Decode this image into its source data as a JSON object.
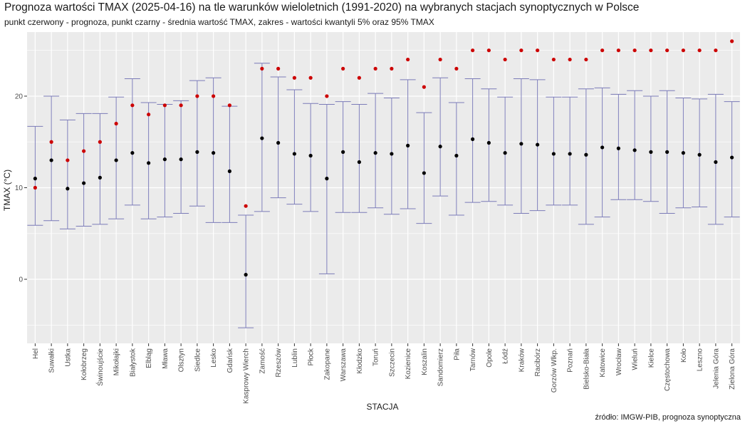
{
  "chart_data": {
    "type": "errorbar-dot",
    "title": "Prognoza wartości TMAX (2025-04-16) na tle warunków wieloletnich (1991-2020) na wybranych stacjach synoptycznych w Polsce",
    "subtitle": "punkt czerwony - prognoza, punkt czarny - średnia wartość TMAX, zakres - wartości kwantyli 5% oraz 95% TMAX",
    "xlabel": "STACJA",
    "ylabel": "TMAX (°C)",
    "source": "źródło: IMGW-PIB, prognoza synoptyczna",
    "ylim": [
      -7,
      27
    ],
    "yticks": [
      0,
      10,
      20
    ],
    "colors": {
      "forecast": "#cc0000",
      "mean": "#000000",
      "range": "#7b7bb8",
      "panel": "#ebebeb",
      "grid": "#ffffff"
    },
    "stations": [
      {
        "name": "Hel",
        "q5": 5.9,
        "q95": 16.7,
        "mean": 11.0,
        "forecast": 10
      },
      {
        "name": "Suwałki",
        "q5": 6.4,
        "q95": 20.0,
        "mean": 13.0,
        "forecast": 15
      },
      {
        "name": "Ustka",
        "q5": 5.5,
        "q95": 17.4,
        "mean": 9.9,
        "forecast": 13
      },
      {
        "name": "Kołobrzeg",
        "q5": 5.8,
        "q95": 18.1,
        "mean": 10.5,
        "forecast": 14
      },
      {
        "name": "Świnoujście",
        "q5": 6.0,
        "q95": 18.1,
        "mean": 11.1,
        "forecast": 15
      },
      {
        "name": "Mikołajki",
        "q5": 6.6,
        "q95": 19.9,
        "mean": 13.0,
        "forecast": 17
      },
      {
        "name": "Białystok",
        "q5": 8.1,
        "q95": 21.9,
        "mean": 13.8,
        "forecast": 19
      },
      {
        "name": "Elbląg",
        "q5": 6.6,
        "q95": 19.3,
        "mean": 12.7,
        "forecast": 18
      },
      {
        "name": "Mława",
        "q5": 6.8,
        "q95": 19.1,
        "mean": 13.1,
        "forecast": 19
      },
      {
        "name": "Olsztyn",
        "q5": 7.2,
        "q95": 19.5,
        "mean": 13.1,
        "forecast": 19
      },
      {
        "name": "Siedlce",
        "q5": 8.0,
        "q95": 21.7,
        "mean": 13.9,
        "forecast": 20
      },
      {
        "name": "Lesko",
        "q5": 6.2,
        "q95": 22.0,
        "mean": 13.8,
        "forecast": 20
      },
      {
        "name": "Gdańsk",
        "q5": 6.2,
        "q95": 18.9,
        "mean": 11.8,
        "forecast": 19
      },
      {
        "name": "Kasprowy Wierch",
        "q5": -5.3,
        "q95": 7.0,
        "mean": 0.5,
        "forecast": 8
      },
      {
        "name": "Zamość",
        "q5": 7.4,
        "q95": 23.6,
        "mean": 15.4,
        "forecast": 23
      },
      {
        "name": "Rzeszów",
        "q5": 8.9,
        "q95": 22.1,
        "mean": 14.9,
        "forecast": 23
      },
      {
        "name": "Lublin",
        "q5": 8.2,
        "q95": 20.7,
        "mean": 13.7,
        "forecast": 22
      },
      {
        "name": "Płock",
        "q5": 7.4,
        "q95": 19.2,
        "mean": 13.5,
        "forecast": 22
      },
      {
        "name": "Zakopane",
        "q5": 0.6,
        "q95": 19.1,
        "mean": 11.0,
        "forecast": 20
      },
      {
        "name": "Warszawa",
        "q5": 7.3,
        "q95": 19.4,
        "mean": 13.9,
        "forecast": 23
      },
      {
        "name": "Kłodzko",
        "q5": 7.3,
        "q95": 19.1,
        "mean": 12.8,
        "forecast": 22
      },
      {
        "name": "Toruń",
        "q5": 7.8,
        "q95": 20.3,
        "mean": 13.8,
        "forecast": 23
      },
      {
        "name": "Szczecin",
        "q5": 7.1,
        "q95": 19.8,
        "mean": 13.7,
        "forecast": 23
      },
      {
        "name": "Kozienice",
        "q5": 7.7,
        "q95": 21.8,
        "mean": 14.6,
        "forecast": 24
      },
      {
        "name": "Koszalin",
        "q5": 6.1,
        "q95": 18.2,
        "mean": 11.6,
        "forecast": 21
      },
      {
        "name": "Sandomierz",
        "q5": 9.1,
        "q95": 22.0,
        "mean": 14.5,
        "forecast": 24
      },
      {
        "name": "Piła",
        "q5": 7.0,
        "q95": 19.3,
        "mean": 13.5,
        "forecast": 23
      },
      {
        "name": "Tarnów",
        "q5": 8.4,
        "q95": 21.9,
        "mean": 15.3,
        "forecast": 25
      },
      {
        "name": "Opole",
        "q5": 8.5,
        "q95": 20.8,
        "mean": 14.9,
        "forecast": 25
      },
      {
        "name": "Łódź",
        "q5": 8.1,
        "q95": 19.9,
        "mean": 13.8,
        "forecast": 24
      },
      {
        "name": "Kraków",
        "q5": 7.2,
        "q95": 21.9,
        "mean": 14.8,
        "forecast": 25
      },
      {
        "name": "Racibórz",
        "q5": 7.5,
        "q95": 21.8,
        "mean": 14.7,
        "forecast": 25
      },
      {
        "name": "Gorzów Wlkp.",
        "q5": 8.1,
        "q95": 19.9,
        "mean": 13.7,
        "forecast": 24
      },
      {
        "name": "Poznań",
        "q5": 8.1,
        "q95": 19.9,
        "mean": 13.7,
        "forecast": 24
      },
      {
        "name": "Bielsko-Biała",
        "q5": 6.0,
        "q95": 20.8,
        "mean": 13.6,
        "forecast": 24
      },
      {
        "name": "Katowice",
        "q5": 6.8,
        "q95": 20.9,
        "mean": 14.4,
        "forecast": 25
      },
      {
        "name": "Wrocław",
        "q5": 8.7,
        "q95": 20.2,
        "mean": 14.3,
        "forecast": 25
      },
      {
        "name": "Wieluń",
        "q5": 8.7,
        "q95": 20.6,
        "mean": 14.1,
        "forecast": 25
      },
      {
        "name": "Kielce",
        "q5": 8.5,
        "q95": 20.0,
        "mean": 13.9,
        "forecast": 25
      },
      {
        "name": "Częstochowa",
        "q5": 7.2,
        "q95": 20.6,
        "mean": 13.9,
        "forecast": 25
      },
      {
        "name": "Koło",
        "q5": 7.8,
        "q95": 19.8,
        "mean": 13.8,
        "forecast": 25
      },
      {
        "name": "Leszno",
        "q5": 7.9,
        "q95": 19.7,
        "mean": 13.6,
        "forecast": 25
      },
      {
        "name": "Jelenia Góra",
        "q5": 6.0,
        "q95": 20.2,
        "mean": 12.8,
        "forecast": 25
      },
      {
        "name": "Zielona Góra",
        "q5": 6.8,
        "q95": 19.4,
        "mean": 13.3,
        "forecast": 26
      }
    ]
  }
}
